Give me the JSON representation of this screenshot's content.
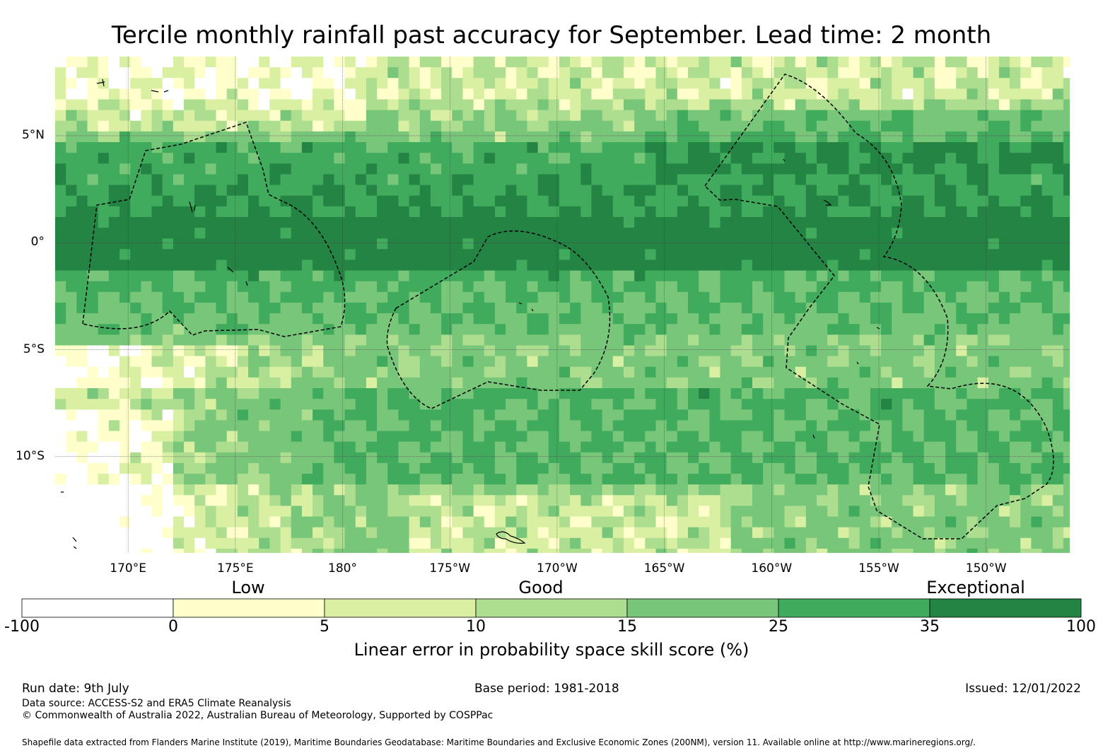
{
  "title": "Tercile monthly rainfall past accuracy for September. Lead time: 2 month",
  "map": {
    "lon_range": [
      166.6,
      213.9
    ],
    "lat_range": [
      -14.5,
      8.7
    ],
    "lon_ticks": [
      {
        "lon": 170,
        "label": "170°E"
      },
      {
        "lon": 175,
        "label": "175°E"
      },
      {
        "lon": 180,
        "label": "180°"
      },
      {
        "lon": 185,
        "label": "175°W"
      },
      {
        "lon": 190,
        "label": "170°W"
      },
      {
        "lon": 195,
        "label": "165°W"
      },
      {
        "lon": 200,
        "label": "160°W"
      },
      {
        "lon": 205,
        "label": "155°W"
      },
      {
        "lon": 210,
        "label": "150°W"
      }
    ],
    "lat_ticks": [
      {
        "lat": 5,
        "label": "5°N"
      },
      {
        "lat": 0,
        "label": "0°"
      },
      {
        "lat": -5,
        "label": "5°S"
      },
      {
        "lat": -10,
        "label": "10°S"
      }
    ]
  },
  "legend": {
    "categories": [
      {
        "label": "Low"
      },
      {
        "label": "Good"
      },
      {
        "label": "Exceptional"
      }
    ],
    "bins": [
      {
        "from": -100,
        "to": 0,
        "color": "#ffffff"
      },
      {
        "from": 0,
        "to": 5,
        "color": "#ffffcc"
      },
      {
        "from": 5,
        "to": 10,
        "color": "#d9f0a3"
      },
      {
        "from": 10,
        "to": 15,
        "color": "#addd8e"
      },
      {
        "from": 15,
        "to": 25,
        "color": "#78c679"
      },
      {
        "from": 25,
        "to": 35,
        "color": "#41ab5d"
      },
      {
        "from": 35,
        "to": 100,
        "color": "#238443"
      }
    ],
    "tick_labels": [
      "-100",
      "0",
      "5",
      "10",
      "15",
      "25",
      "35",
      "100"
    ],
    "title": "Linear error in probability space skill score (%)"
  },
  "footer": {
    "run_date": "Run date: 9th July",
    "base_period": "Base period: 1981-2018",
    "issued": "Issued: 12/01/2022",
    "data_source": "Data source: ACCESS-S2 and ERA5 Climate Reanalysis",
    "copyright": "© Commonwealth of Australia 2022, Australian Bureau of Meteorology, Supported by COSPPac",
    "shapefile": "Shapefile data extracted from Flanders Marine Institute (2019), Maritime Boundaries Geodatabase: Maritime Boundaries and Exclusive Economic Zones (200NM), version 11. Available online at http://www.marineregions.org/."
  }
}
